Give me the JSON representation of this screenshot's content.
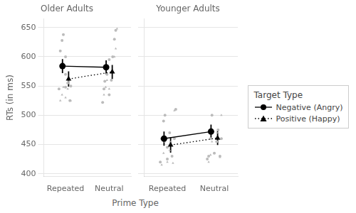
{
  "chart_data": [
    {
      "type": "scatter",
      "title": "Older Adults",
      "xlabel": "Prime Type",
      "ylabel": "RTs (in ms)",
      "xlim": [
        0.5,
        2.5
      ],
      "xticks": [
        {
          "value": 1,
          "label": "Repeated"
        },
        {
          "value": 2,
          "label": "Neutral"
        }
      ],
      "ylim": [
        395,
        665
      ],
      "yticks": [
        400,
        450,
        500,
        550,
        600,
        650
      ],
      "grid": "y",
      "series": [
        {
          "type": "scatter",
          "marker": "circle",
          "color": "#bbbbbb",
          "x": [
            0.85,
            0.88,
            0.92,
            0.95,
            1.0,
            1.0,
            1.0,
            1.05,
            1.1,
            1.12,
            1.85,
            1.88,
            1.9,
            1.95,
            2.0,
            2.0,
            2.05,
            2.08,
            2.12,
            2.15
          ],
          "values": [
            545,
            610,
            628,
            638,
            548,
            570,
            600,
            555,
            525,
            550,
            522,
            545,
            558,
            570,
            535,
            595,
            560,
            600,
            630,
            645
          ]
        },
        {
          "type": "scatter",
          "marker": "triangle",
          "color": "#bbbbbb",
          "x": [
            0.88,
            0.92,
            0.95,
            1.0,
            1.05,
            1.08,
            1.12,
            1.88,
            1.92,
            1.95,
            2.0,
            2.05,
            2.08,
            2.12,
            2.15,
            2.18
          ],
          "values": [
            525,
            535,
            548,
            530,
            545,
            558,
            525,
            535,
            548,
            560,
            545,
            560,
            575,
            600,
            614,
            648
          ]
        },
        {
          "name": "Negative (Angry)",
          "type": "line",
          "marker": "circle",
          "line_style": "solid",
          "color": "#000000",
          "x": [
            1,
            2
          ],
          "values": [
            584,
            582
          ],
          "ci_low": [
            572,
            570
          ],
          "ci_high": [
            596,
            594
          ]
        },
        {
          "name": "Positive (Happy)",
          "type": "line",
          "marker": "triangle",
          "line_style": "dotted",
          "color": "#000000",
          "x": [
            1,
            2
          ],
          "values": [
            562,
            574
          ],
          "ci_low": [
            549,
            562
          ],
          "ci_high": [
            575,
            586
          ]
        }
      ]
    },
    {
      "type": "scatter",
      "title": "Younger Adults",
      "xlim": [
        0.5,
        2.5
      ],
      "xticks": [
        {
          "value": 1,
          "label": "Repeated"
        },
        {
          "value": 2,
          "label": "Neutral"
        }
      ],
      "ylim": [
        395,
        665
      ],
      "yticks": [
        400,
        450,
        500,
        550,
        600,
        650
      ],
      "grid": "y",
      "tick_labels": "x",
      "legend": "right",
      "legend_title": "Target Type",
      "series": [
        {
          "type": "scatter",
          "marker": "circle",
          "color": "#bbbbbb",
          "x": [
            0.85,
            0.88,
            0.92,
            0.95,
            1.0,
            1.0,
            1.05,
            1.1,
            1.15,
            1.18,
            1.85,
            1.88,
            1.92,
            1.95,
            2.0,
            2.05,
            2.08,
            2.12,
            2.15
          ],
          "values": [
            420,
            460,
            490,
            500,
            425,
            445,
            470,
            430,
            460,
            510,
            425,
            430,
            460,
            500,
            435,
            455,
            475,
            430,
            460
          ]
        },
        {
          "type": "scatter",
          "marker": "triangle",
          "color": "#bbbbbb",
          "x": [
            0.88,
            0.92,
            0.95,
            1.0,
            1.05,
            1.08,
            1.12,
            1.15,
            1.88,
            1.92,
            1.95,
            2.0,
            2.05,
            2.08,
            2.12,
            2.15
          ],
          "values": [
            415,
            435,
            455,
            420,
            440,
            455,
            418,
            508,
            420,
            432,
            455,
            435,
            455,
            470,
            428,
            500
          ]
        },
        {
          "name": "Negative (Angry)",
          "type": "line",
          "marker": "circle",
          "line_style": "solid",
          "color": "#000000",
          "x": [
            1,
            2
          ],
          "values": [
            460,
            472
          ],
          "ci_low": [
            448,
            460
          ],
          "ci_high": [
            472,
            484
          ]
        },
        {
          "name": "Positive (Happy)",
          "type": "line",
          "marker": "triangle",
          "line_style": "dotted",
          "color": "#000000",
          "x": [
            1,
            2
          ],
          "values": [
            449,
            461
          ],
          "ci_low": [
            436,
            449
          ],
          "ci_high": [
            462,
            473
          ]
        }
      ]
    }
  ]
}
